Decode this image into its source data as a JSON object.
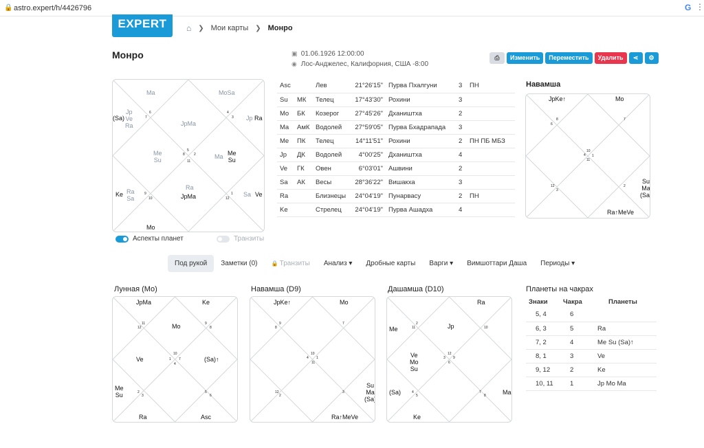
{
  "browser": {
    "url": "astro.expert/h/4426796",
    "google_letter": "G"
  },
  "logo": "EXPERT",
  "breadcrumb": {
    "my_charts": "Мои карты",
    "current": "Монро"
  },
  "page_title": "Монро",
  "meta": {
    "datetime": "01.06.1926 12:00:00",
    "place": "Лос-Анджелес, Калифорния, США -8:00"
  },
  "actions": {
    "edit": "Изменить",
    "move": "Переместить",
    "delete": "Удалить"
  },
  "main_chart_labels": [
    {
      "t": "Ma",
      "g": true
    },
    {
      "t": "MoSa",
      "g": true
    },
    {
      "t": "Jp\nVe\nRa",
      "g": true
    },
    {
      "t": "(Sa)",
      "g": false
    },
    {
      "t": "JpMa",
      "g": true
    },
    {
      "t": "Jp",
      "g": true
    },
    {
      "t": "Ra",
      "g": false
    },
    {
      "t": "Me\nSu",
      "g": true
    },
    {
      "t": "Ma",
      "g": true
    },
    {
      "t": "Me\nSu",
      "g": false
    },
    {
      "t": "Ra\nSa",
      "g": true
    },
    {
      "t": "Ke",
      "g": false
    },
    {
      "t": "Ra",
      "g": true
    },
    {
      "t": "JpMa",
      "g": false
    },
    {
      "t": "Sa",
      "g": true
    },
    {
      "t": "Ve",
      "g": false
    },
    {
      "t": "Mo",
      "g": false
    }
  ],
  "main_chart_house_numbers": [
    "6",
    "7",
    "4",
    "3",
    "5",
    "8",
    "11",
    "2",
    "9",
    "10",
    "12",
    "1"
  ],
  "toggles": {
    "aspects": "Аспекты планет",
    "transits": "Транзиты"
  },
  "positions": {
    "rows": [
      [
        "Asc",
        "",
        "Лев",
        "21°26'15\"",
        "Пурва Пхалгуни",
        "3",
        "ПН"
      ],
      [
        "Su",
        "МК",
        "Телец",
        "17°43'30\"",
        "Рохини",
        "3",
        ""
      ],
      [
        "Mo",
        "БК",
        "Козерог",
        "27°45'26\"",
        "Дхаништха",
        "2",
        ""
      ],
      [
        "Ma",
        "АмК",
        "Водолей",
        "27°59'05\"",
        "Пурва Бхадрапада",
        "3",
        ""
      ],
      [
        "Me",
        "ПК",
        "Телец",
        "14°11'51\"",
        "Рохини",
        "2",
        "ПН ПБ МБЗ"
      ],
      [
        "Jp",
        "ДК",
        "Водолей",
        "4°00'25\"",
        "Дхаништха",
        "4",
        ""
      ],
      [
        "Ve",
        "ГК",
        "Овен",
        "6°03'01\"",
        "Ашвини",
        "2",
        ""
      ],
      [
        "Sa",
        "АК",
        "Весы",
        "28°36'22\"",
        "Вишакха",
        "3",
        ""
      ],
      [
        "Ra",
        "",
        "Близнецы",
        "24°04'19\"",
        "Пунарвасу",
        "2",
        "ПН"
      ],
      [
        "Ke",
        "",
        "Стрелец",
        "24°04'19\"",
        "Пурва Ашадха",
        "4",
        ""
      ]
    ]
  },
  "navamsha_top": {
    "title": "Навамша",
    "labels": [
      "JpKe↑",
      "Mo",
      "Su\nMa\n(Sa)",
      "Ra↑MeVe"
    ],
    "house_numbers": [
      "8",
      "6",
      "7",
      "10",
      "4",
      "1",
      "11",
      "12",
      "3",
      "2"
    ]
  },
  "tabs": [
    "Под рукой",
    "Заметки (0)",
    "Транзиты",
    "Анализ",
    "Дробные карты",
    "Варги",
    "Вимшоттари Даша",
    "Периоды"
  ],
  "lunar": {
    "title": "Лунная (Mo)",
    "labels": [
      "JpMa",
      "Ke",
      "Mo",
      "Ve",
      "(Sa)↑",
      "Me\nSu",
      "Ra",
      "Asc"
    ],
    "house_numbers": [
      "11",
      "12",
      "9",
      "8",
      "10",
      "1",
      "7",
      "4",
      "2",
      "3",
      "5",
      "6"
    ]
  },
  "navamsha_d9": {
    "title": "Навамша (D9)",
    "labels": [
      "JpKe↑",
      "Mo",
      "Su\nMa\n(Sa)",
      "Ra↑MeVe"
    ],
    "house_numbers": [
      "9",
      "8",
      "7",
      "10",
      "4",
      "1",
      "11",
      "12",
      "2",
      "3"
    ]
  },
  "dashamsha": {
    "title": "Дашамша (D10)",
    "labels": [
      "Ra",
      "Me",
      "Jp",
      "Ve\nMo\nSu",
      "(Sa)",
      "Ma",
      "Ke"
    ],
    "house_numbers": [
      "2",
      "11",
      "10",
      "12",
      "3",
      "9",
      "6",
      "4",
      "5",
      "7",
      "8"
    ]
  },
  "chakras": {
    "title": "Планеты на чакрах",
    "headers": [
      "Знаки",
      "Чакра",
      "Планеты"
    ],
    "rows": [
      [
        "5, 4",
        "6",
        ""
      ],
      [
        "6, 3",
        "5",
        "Ra"
      ],
      [
        "7, 2",
        "4",
        "Me Su (Sa)↑"
      ],
      [
        "8, 1",
        "3",
        "Ve"
      ],
      [
        "9, 12",
        "2",
        "Ke"
      ],
      [
        "10, 11",
        "1",
        "Jp Mo Ma"
      ]
    ]
  }
}
